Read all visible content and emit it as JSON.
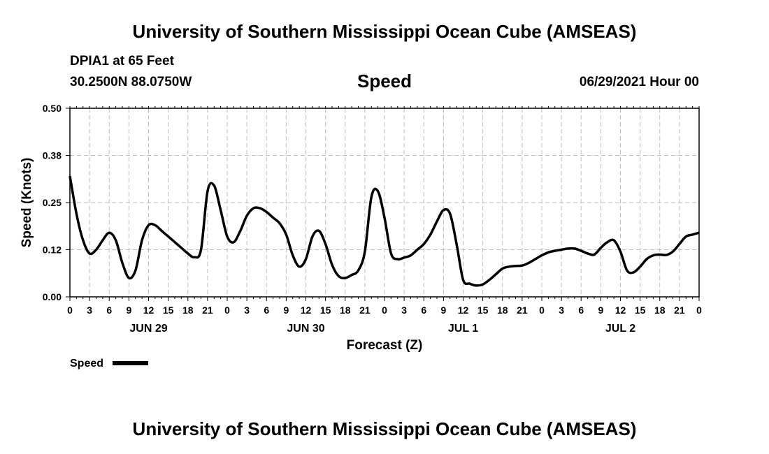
{
  "header": {
    "title": "University of Southern Mississippi Ocean Cube (AMSEAS)",
    "station": "DPIA1 at 65 Feet",
    "coords": "30.2500N  88.0750W",
    "variable": "Speed",
    "date": "06/29/2021 Hour 00",
    "footer_title": "University of Southern Mississippi Ocean Cube (AMSEAS)"
  },
  "chart_data": {
    "type": "line",
    "title": "Speed",
    "xlabel": "Forecast (Z)",
    "ylabel": "Speed (Knots)",
    "ylim": [
      0,
      0.5
    ],
    "xlim": [
      0,
      96
    ],
    "y_ticks": [
      0.0,
      0.125,
      0.25,
      0.375,
      0.5
    ],
    "y_tick_labels": [
      "0.00",
      "0.12",
      "0.25",
      "0.38",
      "0.50"
    ],
    "x_ticks": [
      0,
      3,
      6,
      9,
      12,
      15,
      18,
      21,
      24,
      27,
      30,
      33,
      36,
      39,
      42,
      45,
      48,
      51,
      54,
      57,
      60,
      63,
      66,
      69,
      72,
      75,
      78,
      81,
      84,
      87,
      90,
      93,
      96
    ],
    "x_tick_labels": [
      "0",
      "3",
      "6",
      "9",
      "12",
      "15",
      "18",
      "21",
      "0",
      "3",
      "6",
      "9",
      "12",
      "15",
      "18",
      "21",
      "0",
      "3",
      "6",
      "9",
      "12",
      "15",
      "18",
      "21",
      "0",
      "3",
      "6",
      "9",
      "12",
      "15",
      "18",
      "21",
      "0"
    ],
    "day_labels": [
      {
        "label": "JUN 29",
        "x": 12
      },
      {
        "label": "JUN 30",
        "x": 36
      },
      {
        "label": "JUL 1",
        "x": 60
      },
      {
        "label": "JUL 2",
        "x": 84
      }
    ],
    "grid": true,
    "legend": {
      "label": "Speed",
      "position": "bottom-left"
    },
    "series": [
      {
        "name": "Speed",
        "color": "#000000",
        "x": [
          0,
          1,
          2,
          3,
          4,
          5,
          6,
          7,
          8,
          9,
          10,
          11,
          12,
          13,
          14,
          15,
          16,
          17,
          18,
          19,
          20,
          21,
          22,
          23,
          24,
          25,
          26,
          27,
          28,
          29,
          30,
          31,
          32,
          33,
          34,
          35,
          36,
          37,
          38,
          39,
          40,
          41,
          42,
          43,
          44,
          45,
          46,
          47,
          48,
          49,
          50,
          51,
          52,
          53,
          54,
          55,
          56,
          57,
          58,
          59,
          60,
          61,
          62,
          63,
          64,
          65,
          66,
          67,
          68,
          69,
          70,
          71,
          72,
          73,
          74,
          75,
          76,
          77,
          78,
          79,
          80,
          81,
          82,
          83,
          84,
          85,
          86,
          87,
          88,
          89,
          90,
          91,
          92,
          93,
          94,
          95,
          96
        ],
        "values": [
          0.32,
          0.22,
          0.15,
          0.115,
          0.125,
          0.15,
          0.17,
          0.15,
          0.09,
          0.05,
          0.07,
          0.15,
          0.19,
          0.19,
          0.175,
          0.16,
          0.145,
          0.13,
          0.115,
          0.105,
          0.125,
          0.28,
          0.295,
          0.23,
          0.16,
          0.145,
          0.175,
          0.215,
          0.235,
          0.235,
          0.225,
          0.21,
          0.195,
          0.165,
          0.11,
          0.08,
          0.1,
          0.16,
          0.175,
          0.14,
          0.085,
          0.055,
          0.05,
          0.058,
          0.07,
          0.12,
          0.265,
          0.28,
          0.21,
          0.115,
          0.1,
          0.104,
          0.11,
          0.125,
          0.14,
          0.165,
          0.2,
          0.23,
          0.22,
          0.14,
          0.045,
          0.035,
          0.03,
          0.033,
          0.045,
          0.06,
          0.075,
          0.08,
          0.082,
          0.083,
          0.09,
          0.1,
          0.11,
          0.118,
          0.122,
          0.125,
          0.128,
          0.128,
          0.122,
          0.115,
          0.112,
          0.13,
          0.145,
          0.15,
          0.12,
          0.07,
          0.065,
          0.08,
          0.1,
          0.11,
          0.112,
          0.111,
          0.12,
          0.14,
          0.16,
          0.165,
          0.17
        ]
      }
    ]
  }
}
